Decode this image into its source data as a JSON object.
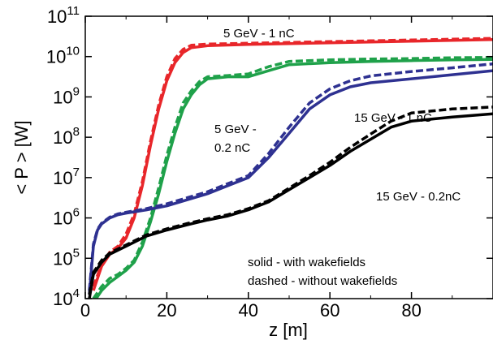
{
  "chart_data": {
    "type": "line",
    "xlabel": "z [m]",
    "ylabel": "< P > [W]",
    "xlim": [
      0,
      100
    ],
    "ylim_exponents": [
      4,
      11
    ],
    "yscale": "log",
    "x_ticks": [
      0,
      20,
      40,
      60,
      80
    ],
    "y_tick_base": "10",
    "y_tick_exponents": [
      "4",
      "5",
      "6",
      "7",
      "8",
      "9",
      "10",
      "11"
    ],
    "grid": false,
    "series": [
      {
        "name": "5 GeV - 1 nC",
        "color": "#e8262a",
        "solid": [
          [
            2,
            4.2
          ],
          [
            4,
            4.8
          ],
          [
            6,
            5.1
          ],
          [
            8,
            5.25
          ],
          [
            10,
            5.5
          ],
          [
            12,
            6.0
          ],
          [
            14,
            6.8
          ],
          [
            16,
            7.8
          ],
          [
            18,
            8.7
          ],
          [
            20,
            9.4
          ],
          [
            22,
            9.85
          ],
          [
            24,
            10.1
          ],
          [
            26,
            10.22
          ],
          [
            30,
            10.27
          ],
          [
            40,
            10.3
          ],
          [
            50,
            10.32
          ],
          [
            60,
            10.34
          ],
          [
            70,
            10.36
          ],
          [
            80,
            10.38
          ],
          [
            90,
            10.4
          ],
          [
            100,
            10.42
          ]
        ],
        "dashed": [
          [
            2,
            4.3
          ],
          [
            4,
            4.85
          ],
          [
            6,
            5.15
          ],
          [
            8,
            5.3
          ],
          [
            10,
            5.6
          ],
          [
            12,
            6.1
          ],
          [
            14,
            6.9
          ],
          [
            16,
            7.9
          ],
          [
            18,
            8.8
          ],
          [
            20,
            9.5
          ],
          [
            22,
            9.95
          ],
          [
            24,
            10.18
          ],
          [
            26,
            10.28
          ],
          [
            30,
            10.31
          ],
          [
            40,
            10.33
          ],
          [
            50,
            10.35
          ],
          [
            60,
            10.37
          ],
          [
            70,
            10.39
          ],
          [
            80,
            10.41
          ],
          [
            90,
            10.43
          ],
          [
            100,
            10.45
          ]
        ]
      },
      {
        "name": "5 GeV - 0.2 nC",
        "color": "#1fa14a",
        "solid": [
          [
            2,
            3.9
          ],
          [
            4,
            4.2
          ],
          [
            6,
            4.4
          ],
          [
            8,
            4.55
          ],
          [
            10,
            4.7
          ],
          [
            12,
            4.9
          ],
          [
            14,
            5.3
          ],
          [
            16,
            5.9
          ],
          [
            18,
            6.6
          ],
          [
            20,
            7.4
          ],
          [
            22,
            8.1
          ],
          [
            24,
            8.7
          ],
          [
            26,
            9.05
          ],
          [
            28,
            9.3
          ],
          [
            30,
            9.45
          ],
          [
            35,
            9.5
          ],
          [
            40,
            9.5
          ],
          [
            45,
            9.65
          ],
          [
            50,
            9.8
          ],
          [
            60,
            9.85
          ],
          [
            70,
            9.88
          ],
          [
            80,
            9.9
          ],
          [
            90,
            9.92
          ],
          [
            100,
            9.93
          ]
        ],
        "dashed": [
          [
            2,
            4.0
          ],
          [
            4,
            4.3
          ],
          [
            6,
            4.5
          ],
          [
            8,
            4.6
          ],
          [
            10,
            4.75
          ],
          [
            12,
            4.95
          ],
          [
            14,
            5.4
          ],
          [
            16,
            6.0
          ],
          [
            18,
            6.75
          ],
          [
            20,
            7.55
          ],
          [
            22,
            8.25
          ],
          [
            24,
            8.85
          ],
          [
            26,
            9.15
          ],
          [
            28,
            9.38
          ],
          [
            30,
            9.5
          ],
          [
            35,
            9.53
          ],
          [
            40,
            9.57
          ],
          [
            45,
            9.75
          ],
          [
            50,
            9.88
          ],
          [
            60,
            9.92
          ],
          [
            70,
            9.94
          ],
          [
            80,
            9.95
          ],
          [
            90,
            9.97
          ],
          [
            100,
            9.98
          ]
        ]
      },
      {
        "name": "15 GeV - 1 nC",
        "color": "#2e3191",
        "solid": [
          [
            1,
            4.1
          ],
          [
            2,
            5.3
          ],
          [
            3,
            5.7
          ],
          [
            4,
            5.85
          ],
          [
            6,
            6.0
          ],
          [
            8,
            6.08
          ],
          [
            10,
            6.12
          ],
          [
            15,
            6.2
          ],
          [
            20,
            6.3
          ],
          [
            25,
            6.45
          ],
          [
            30,
            6.6
          ],
          [
            35,
            6.8
          ],
          [
            40,
            7.0
          ],
          [
            45,
            7.5
          ],
          [
            50,
            8.1
          ],
          [
            55,
            8.7
          ],
          [
            60,
            9.05
          ],
          [
            65,
            9.25
          ],
          [
            70,
            9.35
          ],
          [
            80,
            9.45
          ],
          [
            90,
            9.55
          ],
          [
            100,
            9.65
          ]
        ],
        "dashed": [
          [
            1,
            4.2
          ],
          [
            2,
            5.35
          ],
          [
            3,
            5.72
          ],
          [
            4,
            5.87
          ],
          [
            6,
            6.02
          ],
          [
            8,
            6.1
          ],
          [
            10,
            6.14
          ],
          [
            15,
            6.23
          ],
          [
            20,
            6.35
          ],
          [
            25,
            6.5
          ],
          [
            30,
            6.65
          ],
          [
            35,
            6.85
          ],
          [
            40,
            7.05
          ],
          [
            45,
            7.6
          ],
          [
            50,
            8.25
          ],
          [
            55,
            8.85
          ],
          [
            60,
            9.2
          ],
          [
            65,
            9.4
          ],
          [
            70,
            9.52
          ],
          [
            80,
            9.63
          ],
          [
            90,
            9.72
          ],
          [
            100,
            9.82
          ]
        ]
      },
      {
        "name": "15 GeV - 0.2nC",
        "color": "#000000",
        "solid": [
          [
            1,
            4.0
          ],
          [
            2,
            4.6
          ],
          [
            4,
            4.9
          ],
          [
            6,
            5.1
          ],
          [
            10,
            5.3
          ],
          [
            15,
            5.55
          ],
          [
            20,
            5.7
          ],
          [
            25,
            5.83
          ],
          [
            30,
            5.95
          ],
          [
            35,
            6.05
          ],
          [
            40,
            6.2
          ],
          [
            45,
            6.4
          ],
          [
            50,
            6.7
          ],
          [
            55,
            7.0
          ],
          [
            60,
            7.3
          ],
          [
            65,
            7.65
          ],
          [
            70,
            7.95
          ],
          [
            75,
            8.25
          ],
          [
            80,
            8.4
          ],
          [
            85,
            8.45
          ],
          [
            90,
            8.5
          ],
          [
            100,
            8.58
          ]
        ],
        "dashed": [
          [
            1,
            4.1
          ],
          [
            2,
            4.65
          ],
          [
            4,
            4.95
          ],
          [
            6,
            5.13
          ],
          [
            10,
            5.33
          ],
          [
            15,
            5.58
          ],
          [
            20,
            5.73
          ],
          [
            25,
            5.86
          ],
          [
            30,
            5.98
          ],
          [
            35,
            6.08
          ],
          [
            40,
            6.23
          ],
          [
            45,
            6.43
          ],
          [
            50,
            6.74
          ],
          [
            55,
            7.05
          ],
          [
            60,
            7.38
          ],
          [
            65,
            7.75
          ],
          [
            70,
            8.08
          ],
          [
            75,
            8.4
          ],
          [
            80,
            8.6
          ],
          [
            85,
            8.65
          ],
          [
            90,
            8.7
          ],
          [
            100,
            8.75
          ]
        ]
      }
    ],
    "annotations": {
      "red": "5 GeV - 1 nC",
      "green_line1": "5 GeV -",
      "green_line2": "0.2 nC",
      "blue": "15 GeV - 1 nC",
      "black": "15 GeV - 0.2nC",
      "note_line1": "solid - with wakefields",
      "note_line2": "dashed - without wakefields"
    }
  }
}
